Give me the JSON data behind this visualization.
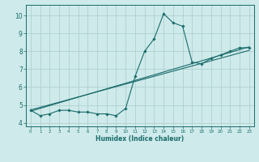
{
  "xlabel": "Humidex (Indice chaleur)",
  "ylabel": "",
  "background_color": "#ceeaea",
  "grid_color": "#b0d0d0",
  "line_color": "#1a6b6b",
  "xlim": [
    -0.5,
    23.5
  ],
  "ylim": [
    3.8,
    10.6
  ],
  "xticks": [
    0,
    1,
    2,
    3,
    4,
    5,
    6,
    7,
    8,
    9,
    10,
    11,
    12,
    13,
    14,
    15,
    16,
    17,
    18,
    19,
    20,
    21,
    22,
    23
  ],
  "yticks": [
    4,
    5,
    6,
    7,
    8,
    9,
    10
  ],
  "curve_x": [
    0,
    1,
    2,
    3,
    4,
    5,
    6,
    7,
    8,
    9,
    10,
    11,
    12,
    13,
    14,
    15,
    16,
    17,
    18,
    19,
    20,
    21,
    22,
    23
  ],
  "curve_y": [
    4.7,
    4.4,
    4.5,
    4.7,
    4.7,
    4.6,
    4.6,
    4.5,
    4.5,
    4.4,
    4.8,
    6.6,
    8.0,
    8.7,
    10.1,
    9.6,
    9.4,
    7.4,
    7.3,
    7.6,
    7.8,
    8.0,
    8.2,
    8.2
  ],
  "trend_x": [
    0,
    23
  ],
  "trend_y": [
    4.65,
    8.25
  ],
  "trend2_x": [
    0,
    23
  ],
  "trend2_y": [
    4.72,
    8.05
  ]
}
